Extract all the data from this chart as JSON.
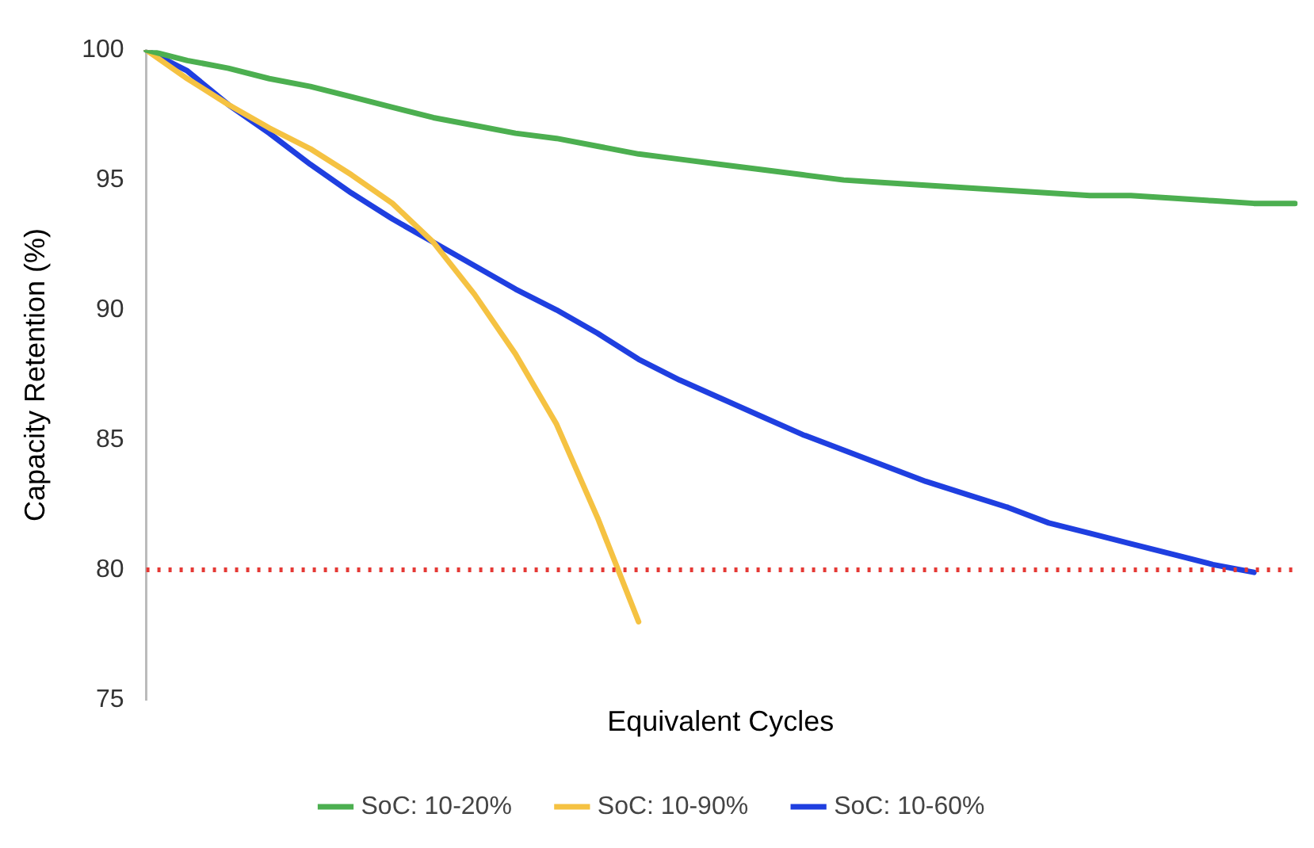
{
  "chart_data": {
    "type": "line",
    "xlabel": "Equivalent Cycles",
    "ylabel": "Capacity Retention (%)",
    "categories": [
      null,
      null,
      null,
      null,
      null,
      null,
      null,
      null,
      null,
      null,
      null,
      null,
      null,
      null,
      null,
      null,
      null,
      null,
      null,
      null,
      null,
      null,
      null,
      null,
      null,
      null,
      null,
      null,
      null
    ],
    "series": [
      {
        "name": "SoC: 10-20%",
        "color": "#4caf50",
        "values": [
          100,
          99.6,
          99.3,
          98.9,
          98.6,
          98.2,
          97.8,
          97.4,
          97.1,
          96.8,
          96.6,
          96.3,
          96.0,
          95.8,
          95.6,
          95.4,
          95.2,
          95.0,
          94.9,
          94.8,
          94.7,
          94.6,
          94.5,
          94.4,
          94.4,
          94.3,
          94.2,
          94.1,
          94.1
        ]
      },
      {
        "name": "SoC: 10-90%",
        "color": "#f5c242",
        "values": [
          100,
          98.9,
          97.9,
          97.0,
          96.2,
          95.2,
          94.1,
          92.6,
          90.6,
          88.3,
          85.6,
          82.0,
          78.0,
          null,
          null,
          null,
          null,
          null,
          null,
          null,
          null,
          null,
          null,
          null,
          null,
          null,
          null,
          null,
          null
        ]
      },
      {
        "name": "SoC: 10-60%",
        "color": "#1f3fe0",
        "values": [
          100,
          99.2,
          97.9,
          96.8,
          95.6,
          94.5,
          93.5,
          92.6,
          91.7,
          90.8,
          90.0,
          89.1,
          88.1,
          87.3,
          86.6,
          85.9,
          85.2,
          84.6,
          84.0,
          83.4,
          82.9,
          82.4,
          81.8,
          81.4,
          81.0,
          80.6,
          80.2,
          79.9,
          null
        ]
      }
    ],
    "ylim": [
      75,
      100
    ],
    "yticks": [
      75,
      80,
      85,
      90,
      95,
      100
    ],
    "ref_lines": [
      {
        "axis": "y",
        "value": 80,
        "color": "#e53935",
        "line_style": "dotted"
      }
    ],
    "grid": false,
    "legend": "bottom",
    "marker": "none",
    "line_style": "solid",
    "tick_labels": "y"
  }
}
